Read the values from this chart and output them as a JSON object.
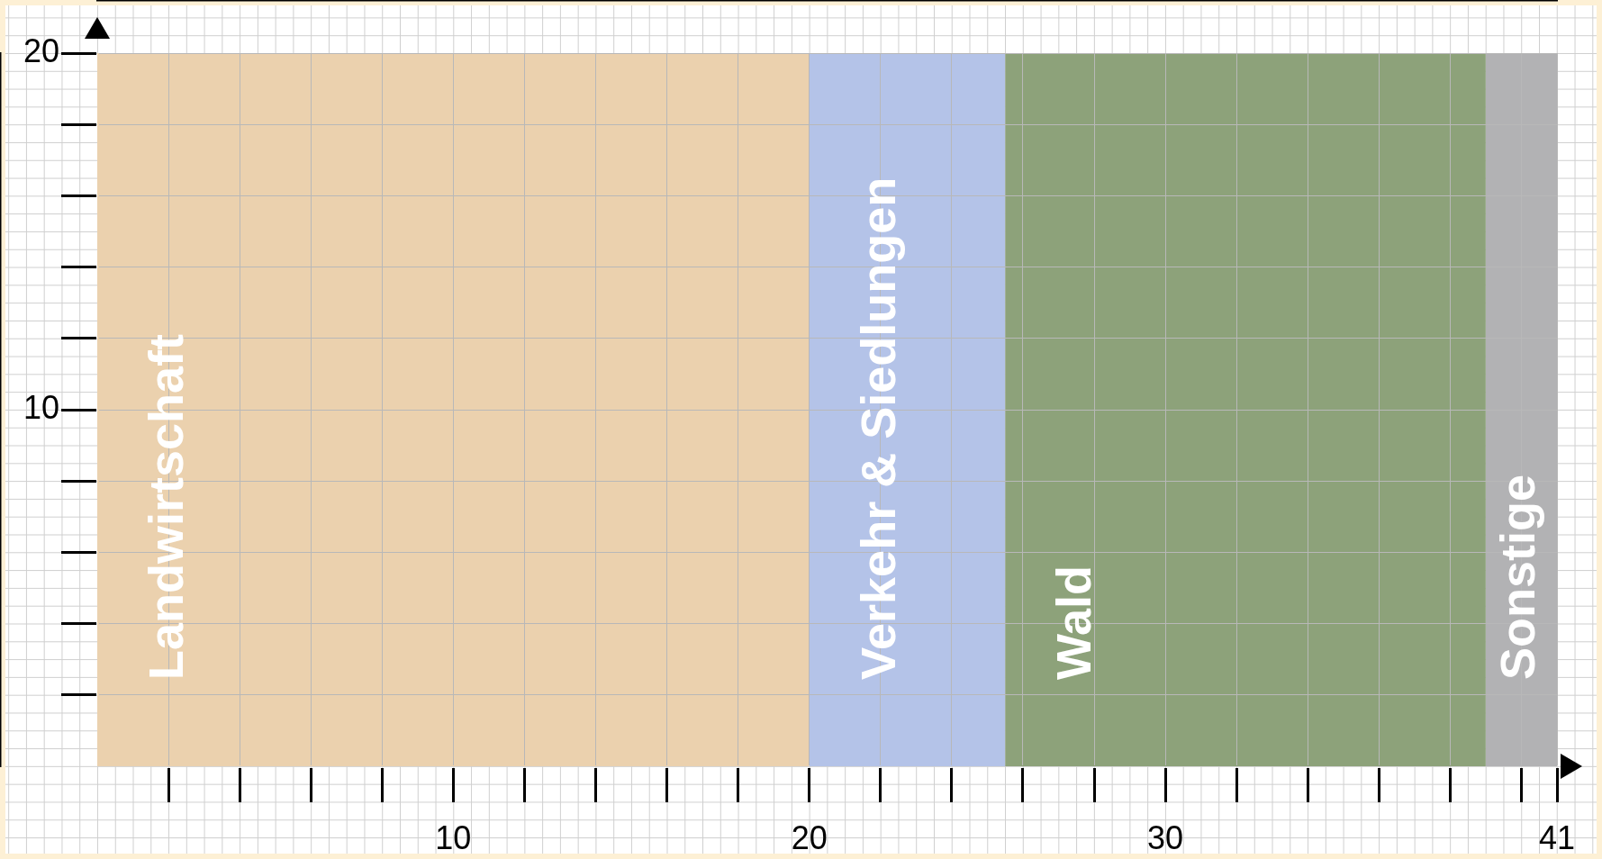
{
  "chart_data": {
    "type": "area",
    "series": [
      {
        "name": "Landwirtschaft",
        "color": "#ebd1ae",
        "x": [
          0,
          20
        ],
        "values": [
          20,
          20
        ]
      },
      {
        "name": "Verkehr & Siedlungen",
        "color": "#b4c3e8",
        "x": [
          20,
          25.5
        ],
        "values": [
          20,
          20
        ]
      },
      {
        "name": "Wald",
        "color": "#8da27a",
        "x": [
          25.5,
          39
        ],
        "values": [
          20,
          20
        ]
      },
      {
        "name": "Sonstige",
        "color": "#b2b2b4",
        "x": [
          39,
          41
        ],
        "values": [
          20,
          20
        ]
      }
    ],
    "xlim": [
      0,
      41
    ],
    "ylim": [
      0,
      20
    ],
    "xticks": [
      {
        "value": 2,
        "label": null
      },
      {
        "value": 4,
        "label": null
      },
      {
        "value": 6,
        "label": null
      },
      {
        "value": 8,
        "label": null
      },
      10,
      {
        "value": 12,
        "label": null
      },
      {
        "value": 14,
        "label": null
      },
      {
        "value": 16,
        "label": null
      },
      {
        "value": 18,
        "label": null
      },
      20,
      {
        "value": 22,
        "label": null
      },
      {
        "value": 24,
        "label": null
      },
      {
        "value": 26,
        "label": null
      },
      {
        "value": 28,
        "label": null
      },
      30,
      {
        "value": 32,
        "label": null
      },
      {
        "value": 34,
        "label": null
      },
      {
        "value": 36,
        "label": null
      },
      {
        "value": 38,
        "label": null
      },
      {
        "value": 40,
        "label": null
      },
      41
    ],
    "yticks": [
      {
        "value": 2,
        "label": null
      },
      {
        "value": 4,
        "label": null
      },
      {
        "value": 6,
        "label": null
      },
      {
        "value": 8,
        "label": null
      },
      10,
      {
        "value": 12,
        "label": null
      },
      {
        "value": 14,
        "label": null
      },
      {
        "value": 16,
        "label": null
      },
      {
        "value": 18,
        "label": null
      },
      20
    ],
    "grid": true
  }
}
